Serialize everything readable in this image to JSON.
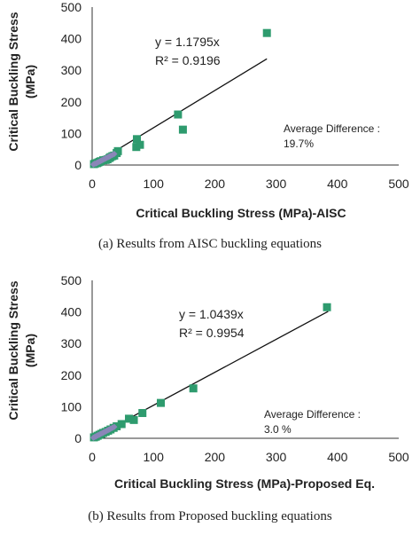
{
  "chart_data": [
    {
      "type": "scatter",
      "caption": "(a)   Results from AISC buckling equations",
      "xlabel": "Critical Buckling Stress (MPa)-AISC",
      "ylabel_lines": [
        "Critical Buckling Stress",
        "(MPa)"
      ],
      "xlim": [
        0,
        500
      ],
      "ylim": [
        0,
        500
      ],
      "xticks": [
        0,
        100,
        200,
        300,
        400,
        500
      ],
      "yticks": [
        0,
        100,
        200,
        300,
        400,
        500
      ],
      "grid": false,
      "legend": "none",
      "equation": "y = 1.1795x",
      "r2": "R² = 0.9196",
      "note_lines": [
        "Average Difference :",
        "19.7%"
      ],
      "trendline": {
        "slope": 1.1795,
        "x_range": [
          0,
          285
        ]
      },
      "colors": {
        "square": "#2e9b6e",
        "diamond": "#8a86b8",
        "line": "#111111"
      },
      "series": [
        {
          "marker": "square",
          "points": [
            [
              3,
              3
            ],
            [
              5,
              5
            ],
            [
              8,
              6
            ],
            [
              10,
              8
            ],
            [
              12,
              10
            ],
            [
              14,
              12
            ],
            [
              18,
              15
            ],
            [
              22,
              16
            ],
            [
              25,
              18
            ],
            [
              28,
              22
            ],
            [
              30,
              25
            ],
            [
              33,
              28
            ],
            [
              36,
              30
            ],
            [
              40,
              38
            ],
            [
              42,
              44
            ],
            [
              72,
              57
            ],
            [
              73,
              82
            ],
            [
              78,
              64
            ],
            [
              140,
              160
            ],
            [
              148,
              112
            ],
            [
              285,
              418
            ]
          ]
        },
        {
          "marker": "diamond",
          "points": [
            [
              2,
              2
            ],
            [
              4,
              4
            ],
            [
              6,
              5
            ],
            [
              8,
              7
            ],
            [
              10,
              9
            ],
            [
              12,
              11
            ],
            [
              14,
              13
            ],
            [
              16,
              15
            ],
            [
              18,
              17
            ],
            [
              20,
              19
            ],
            [
              22,
              21
            ],
            [
              24,
              23
            ],
            [
              26,
              25
            ],
            [
              28,
              27
            ],
            [
              30,
              29
            ],
            [
              33,
              32
            ],
            [
              36,
              35
            ]
          ]
        }
      ]
    },
    {
      "type": "scatter",
      "caption": "(b)   Results from Proposed buckling equations",
      "xlabel": "Critical Buckling Stress (MPa)-Proposed Eq.",
      "ylabel_lines": [
        "Critical Buckling Stress",
        "(MPa)"
      ],
      "xlim": [
        0,
        500
      ],
      "ylim": [
        0,
        500
      ],
      "xticks": [
        0,
        100,
        200,
        300,
        400,
        500
      ],
      "yticks": [
        0,
        100,
        200,
        300,
        400,
        500
      ],
      "grid": false,
      "legend": "none",
      "equation": "y = 1.0439x",
      "r2": "R² = 0.9954",
      "note_lines": [
        "Average Difference :",
        "3.0 %"
      ],
      "trendline": {
        "slope": 1.0439,
        "x_range": [
          0,
          385
        ]
      },
      "colors": {
        "square": "#2e9b6e",
        "diamond": "#8a86b8",
        "line": "#111111"
      },
      "series": [
        {
          "marker": "square",
          "points": [
            [
              3,
              3
            ],
            [
              6,
              5
            ],
            [
              9,
              8
            ],
            [
              12,
              11
            ],
            [
              15,
              14
            ],
            [
              18,
              17
            ],
            [
              22,
              20
            ],
            [
              26,
              24
            ],
            [
              30,
              28
            ],
            [
              35,
              33
            ],
            [
              40,
              38
            ],
            [
              48,
              45
            ],
            [
              60,
              62
            ],
            [
              68,
              58
            ],
            [
              82,
              80
            ],
            [
              112,
              112
            ],
            [
              165,
              158
            ],
            [
              383,
              415
            ]
          ]
        },
        {
          "marker": "diamond",
          "points": [
            [
              2,
              2
            ],
            [
              4,
              4
            ],
            [
              6,
              6
            ],
            [
              8,
              8
            ],
            [
              10,
              10
            ],
            [
              12,
              12
            ],
            [
              14,
              14
            ],
            [
              16,
              16
            ],
            [
              18,
              18
            ],
            [
              20,
              20
            ],
            [
              22,
              22
            ],
            [
              24,
              24
            ],
            [
              26,
              26
            ],
            [
              28,
              28
            ],
            [
              30,
              30
            ],
            [
              33,
              33
            ],
            [
              36,
              36
            ]
          ]
        }
      ]
    }
  ]
}
